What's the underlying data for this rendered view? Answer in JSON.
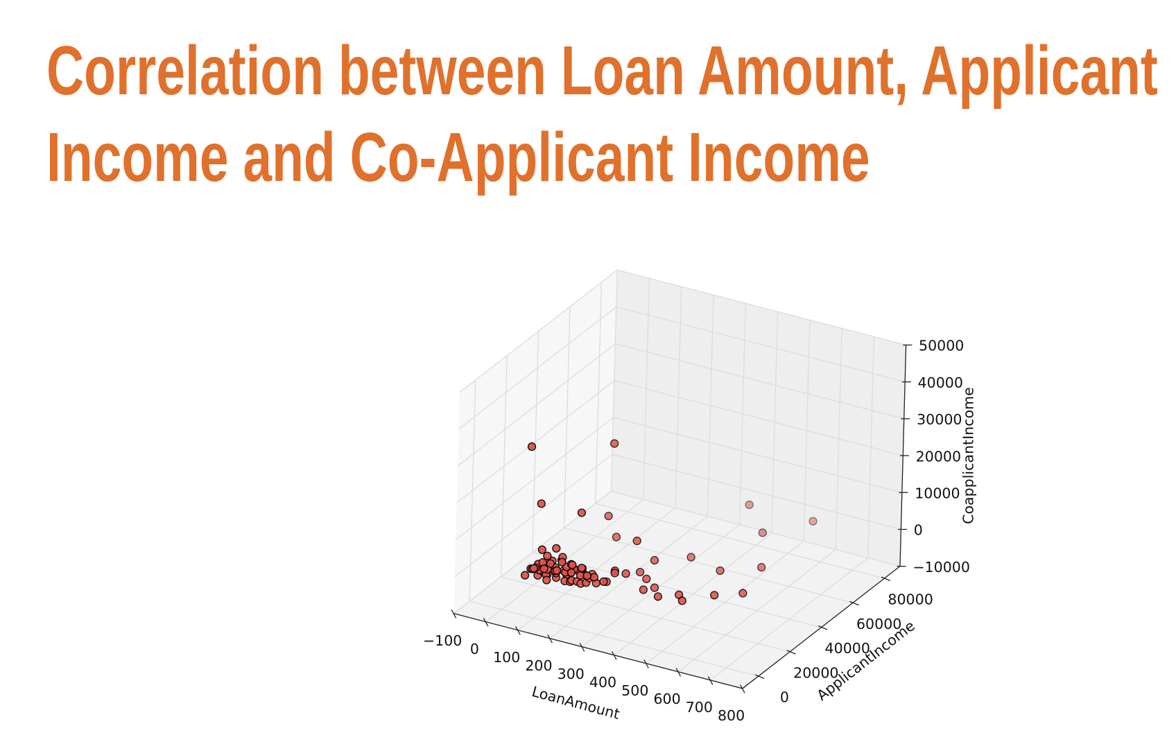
{
  "chart_data": {
    "type": "scatter3d",
    "title": "Correlation between Loan Amount, Applicant Income and Co-Applicant Income",
    "x_label": "LoanAmount",
    "y_label": "ApplicantIncome",
    "z_label": "CoapplicantIncome",
    "color": "#e0524a",
    "grid": true,
    "xlim": [
      -100,
      800
    ],
    "ylim": [
      -10000,
      90000
    ],
    "zlim": [
      -10000,
      50000
    ],
    "xticks": [
      {
        "value": -100,
        "label": "−100"
      },
      0,
      100,
      200,
      300,
      400,
      500,
      600,
      700,
      800
    ],
    "yticks": [
      0,
      20000,
      40000,
      60000,
      80000
    ],
    "zticks": [
      {
        "value": -10000,
        "label": "−10000"
      },
      0,
      10000,
      20000,
      30000,
      40000,
      50000
    ],
    "x": [
      80,
      240,
      100,
      216,
      180,
      206,
      318,
      400,
      515,
      570,
      610,
      650,
      600,
      530,
      415,
      500,
      520,
      350,
      330,
      360,
      380,
      400,
      440,
      300,
      290,
      310,
      60,
      70,
      80,
      90,
      95,
      100,
      105,
      110,
      115,
      120,
      125,
      130,
      135,
      140,
      145,
      150,
      155,
      160,
      165,
      170,
      175,
      180,
      185,
      190,
      195,
      200,
      205,
      210,
      215,
      220,
      225,
      230,
      240,
      250,
      260,
      270,
      280,
      120,
      140,
      100,
      90,
      160,
      185,
      130,
      110,
      150,
      175,
      200,
      75,
      85,
      65,
      95,
      230,
      250,
      145,
      170
    ],
    "y": [
      0,
      20000,
      3000,
      5000,
      30000,
      30000,
      20000,
      75000,
      60000,
      81000,
      40000,
      20000,
      12000,
      30000,
      35000,
      10000,
      8000,
      25000,
      20000,
      18000,
      12000,
      15000,
      9000,
      10000,
      12000,
      15000,
      2000,
      3500,
      2500,
      4000,
      3000,
      5000,
      1800,
      6000,
      4500,
      3000,
      2500,
      7000,
      3800,
      5500,
      4200,
      2600,
      9000,
      6000,
      3500,
      4800,
      7500,
      2900,
      5200,
      8000,
      4000,
      6500,
      3300,
      9500,
      5800,
      4400,
      7200,
      10000,
      6000,
      8500,
      5000,
      11000,
      7000,
      10000,
      12000,
      8000,
      7000,
      11000,
      13000,
      1500,
      2200,
      3000,
      2000,
      2500,
      5500,
      9000,
      6500,
      11000,
      3000,
      2500,
      8000,
      9500
    ],
    "z": [
      36000,
      33837,
      20000,
      19500,
      9500,
      4400,
      9200,
      2600,
      2600,
      0,
      2000,
      2500,
      3500,
      2600,
      2000,
      2000,
      1500,
      3000,
      1000,
      500,
      0,
      0,
      500,
      4000,
      2500,
      1800,
      0,
      1500,
      2000,
      0,
      3500,
      1000,
      2500,
      0,
      4000,
      1200,
      0,
      2000,
      5000,
      0,
      1800,
      3000,
      0,
      2200,
      6000,
      0,
      1500,
      3200,
      0,
      2400,
      1000,
      0,
      4500,
      1000,
      0,
      2800,
      0,
      1500,
      2000,
      0,
      3000,
      0,
      1600,
      0,
      800,
      500,
      2500,
      0,
      1000,
      7000,
      8000,
      9000,
      7500,
      6000,
      1200,
      0,
      500,
      1000,
      5500,
      4000,
      3500,
      2800
    ]
  }
}
